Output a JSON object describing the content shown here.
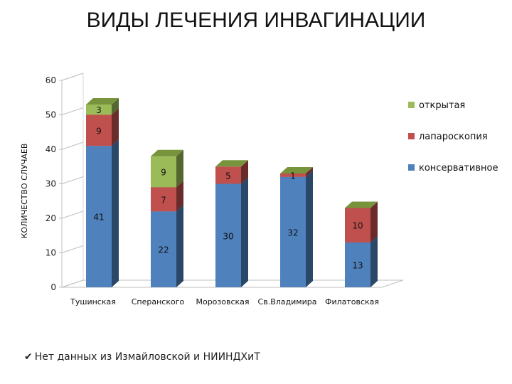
{
  "chart_data": {
    "type": "bar",
    "stacked": true,
    "style": "3d",
    "title": "ВИДЫ ЛЕЧЕНИЯ ИНВАГИНАЦИИ",
    "ylabel": "КОЛИЧЕСТВО СЛУЧАЕВ",
    "xlabel": "",
    "ylim": [
      0,
      60
    ],
    "yticks": [
      "0",
      "10",
      "20",
      "30",
      "40",
      "50",
      "60"
    ],
    "grid": false,
    "legend_position": "right",
    "categories": [
      "Тушинская",
      "Сперанского",
      "Морозовская",
      "Св.Владимира",
      "Филатовская"
    ],
    "series": [
      {
        "name": "консервативное",
        "color": "#4F81BD",
        "values": [
          41,
          22,
          30,
          32,
          13
        ]
      },
      {
        "name": "лапароскопия",
        "color": "#C0504D",
        "values": [
          9,
          7,
          5,
          1,
          10
        ]
      },
      {
        "name": "открытая",
        "color": "#9BBB59",
        "values": [
          3,
          9,
          null,
          null,
          null
        ]
      }
    ],
    "top_color": "#77933C"
  },
  "footnote": {
    "check": "✔",
    "text": "Нет данных из Измайловской и НИИНДХиТ"
  }
}
